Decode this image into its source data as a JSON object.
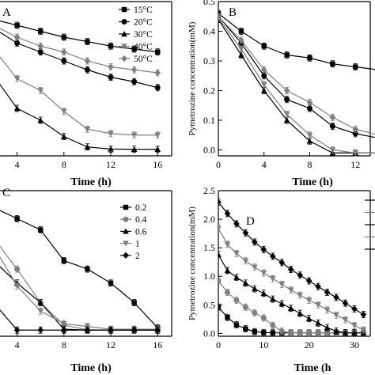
{
  "chart_data": [
    {
      "panel": "A",
      "type": "line",
      "xlabel": "Time (h)",
      "ylabel": "",
      "xlim": [
        2,
        17.2
      ],
      "ylim": [
        -0.02,
        0.5
      ],
      "xticks": [
        4,
        8,
        12,
        16
      ],
      "yticks": [],
      "legend_position": "top-right",
      "x": [
        0,
        2,
        4,
        6,
        8,
        10,
        12,
        14,
        16
      ],
      "series": [
        {
          "name": "15°C",
          "marker": "square",
          "color": "#000000",
          "values": [
            0.46,
            0.44,
            0.42,
            0.4,
            0.38,
            0.365,
            0.35,
            0.34,
            0.33
          ]
        },
        {
          "name": "20°C",
          "marker": "circle",
          "color": "#000000",
          "values": [
            0.46,
            0.41,
            0.36,
            0.33,
            0.3,
            0.27,
            0.245,
            0.23,
            0.21
          ]
        },
        {
          "name": "30°C",
          "marker": "triangle-up",
          "color": "#000000",
          "values": [
            0.46,
            0.25,
            0.14,
            0.1,
            0.045,
            0.01,
            0.003,
            0.002,
            0.002
          ]
        },
        {
          "name": "40°C",
          "marker": "triangle-down",
          "color": "#7f7f7f",
          "values": [
            0.46,
            0.34,
            0.24,
            0.2,
            0.13,
            0.07,
            0.055,
            0.05,
            0.05
          ]
        },
        {
          "name": "50°C",
          "marker": "diamond",
          "color": "#7f7f7f",
          "values": [
            0.46,
            0.42,
            0.38,
            0.35,
            0.33,
            0.3,
            0.28,
            0.27,
            0.26
          ]
        }
      ]
    },
    {
      "panel": "B",
      "type": "line",
      "xlabel": "Time (h)",
      "ylabel": "Pymetrozine concentration(mM)",
      "xlim": [
        0,
        13.3
      ],
      "ylim": [
        -0.02,
        0.5
      ],
      "xticks": [
        0,
        4,
        8,
        12
      ],
      "xticklabels": [
        "0",
        "4",
        "8",
        "12"
      ],
      "yticks": [
        0.0,
        0.1,
        0.2,
        0.3,
        0.4,
        0.5
      ],
      "yticklabels": [
        "0.0",
        "0.1",
        "0.2",
        "0.3",
        "0.4",
        "0.5"
      ],
      "x": [
        0,
        2,
        4,
        6,
        8,
        10,
        12,
        14
      ],
      "series": [
        {
          "marker": "square",
          "color": "#000000",
          "values": [
            0.46,
            0.4,
            0.35,
            0.32,
            0.31,
            0.29,
            0.28,
            0.27
          ]
        },
        {
          "marker": "circle",
          "color": "#000000",
          "values": [
            0.45,
            0.36,
            0.25,
            0.17,
            0.14,
            0.08,
            0.055,
            0.04
          ]
        },
        {
          "marker": "triangle-up",
          "color": "#000000",
          "values": [
            0.44,
            0.32,
            0.2,
            0.1,
            0.03,
            -0.01,
            -0.01,
            -0.01
          ]
        },
        {
          "marker": "triangle-down",
          "color": "#7f7f7f",
          "values": [
            0.445,
            0.34,
            0.22,
            0.12,
            0.05,
            0.0,
            -0.01,
            -0.01
          ]
        },
        {
          "marker": "diamond",
          "color": "#7f7f7f",
          "values": [
            0.45,
            0.37,
            0.27,
            0.2,
            0.16,
            0.11,
            0.07,
            0.05
          ]
        }
      ]
    },
    {
      "panel": "C",
      "type": "line",
      "xlabel": "Time (h)",
      "ylabel": "",
      "xlim": [
        2,
        17.2
      ],
      "ylim": [
        -0.02,
        0.5
      ],
      "xticks": [
        4,
        8,
        12,
        16
      ],
      "yticks": [],
      "legend_position": "top-right",
      "x": [
        0,
        2,
        4,
        6,
        8,
        10,
        12,
        14,
        16
      ],
      "series": [
        {
          "name": "0.2",
          "marker": "square",
          "color": "#000000",
          "values": [
            0.46,
            0.44,
            0.4,
            0.36,
            0.25,
            0.22,
            0.17,
            0.1,
            0.01
          ]
        },
        {
          "name": "0.4",
          "marker": "circle",
          "color": "#7f7f7f",
          "values": [
            0.46,
            0.33,
            0.22,
            0.1,
            0.02,
            0.003,
            0.002,
            0.002,
            0.002
          ]
        },
        {
          "name": "0.6",
          "marker": "triangle-up",
          "color": "#000000",
          "values": [
            0.46,
            0.25,
            0.17,
            0.1,
            0.005,
            0.002,
            0.002,
            0.002,
            0.002
          ]
        },
        {
          "name": "1",
          "marker": "triangle-down",
          "color": "#7f7f7f",
          "values": [
            0.46,
            0.3,
            0.16,
            0.07,
            0.025,
            0.015,
            0.005,
            0.005,
            0.005
          ]
        },
        {
          "name": "2",
          "marker": "diamond",
          "color": "#000000",
          "values": [
            0.46,
            0.1,
            0.002,
            0.002,
            0.002,
            0.002,
            0.002,
            0.002,
            0.002
          ]
        }
      ]
    },
    {
      "panel": "D",
      "type": "line",
      "xlabel": "Time (h",
      "ylabel": "Pymetrozine concentration(mM)",
      "xlim": [
        0,
        33.5
      ],
      "ylim": [
        -0.05,
        2.5
      ],
      "xticks": [
        0,
        10,
        20,
        30
      ],
      "xticklabels": [
        "0",
        "10",
        "20",
        "30"
      ],
      "yticks": [
        0.0,
        0.5,
        1.0,
        1.5,
        2.0,
        2.5
      ],
      "yticklabels": [
        "0.0",
        "0.5",
        "1.0",
        "1.5",
        "2.0",
        "2.5"
      ],
      "x": [
        0,
        2,
        4,
        6,
        8,
        10,
        12,
        14,
        16,
        18,
        20,
        22,
        24,
        26,
        28,
        30,
        32
      ],
      "series": [
        {
          "marker": "square",
          "color": "#000000",
          "values": [
            0.46,
            0.28,
            0.15,
            0.08,
            0.03,
            0.015,
            0.01,
            0.01,
            0.01,
            0.01,
            0.01,
            0.01,
            0.01,
            0.01,
            0.01,
            0.01,
            0.01
          ]
        },
        {
          "marker": "circle",
          "color": "#7f7f7f",
          "values": [
            0.92,
            0.72,
            0.58,
            0.46,
            0.36,
            0.27,
            0.14,
            0.04,
            0.01,
            0.01,
            0.01,
            0.01,
            0.01,
            0.01,
            0.01,
            0.01,
            0.01
          ]
        },
        {
          "marker": "triangle-up",
          "color": "#000000",
          "values": [
            1.38,
            1.1,
            0.98,
            0.88,
            0.78,
            0.7,
            0.6,
            0.52,
            0.44,
            0.35,
            0.26,
            0.18,
            0.1,
            0.04,
            0.01,
            0.01,
            0.01
          ]
        },
        {
          "marker": "triangle-down",
          "color": "#7f7f7f",
          "values": [
            1.84,
            1.56,
            1.4,
            1.27,
            1.16,
            1.06,
            0.96,
            0.86,
            0.76,
            0.67,
            0.58,
            0.5,
            0.41,
            0.32,
            0.24,
            0.14,
            0.06
          ]
        },
        {
          "marker": "diamond",
          "color": "#000000",
          "values": [
            2.3,
            2.1,
            1.92,
            1.76,
            1.6,
            1.47,
            1.35,
            1.24,
            1.12,
            1.02,
            0.92,
            0.82,
            0.72,
            0.63,
            0.53,
            0.43,
            0.33
          ]
        }
      ]
    }
  ]
}
